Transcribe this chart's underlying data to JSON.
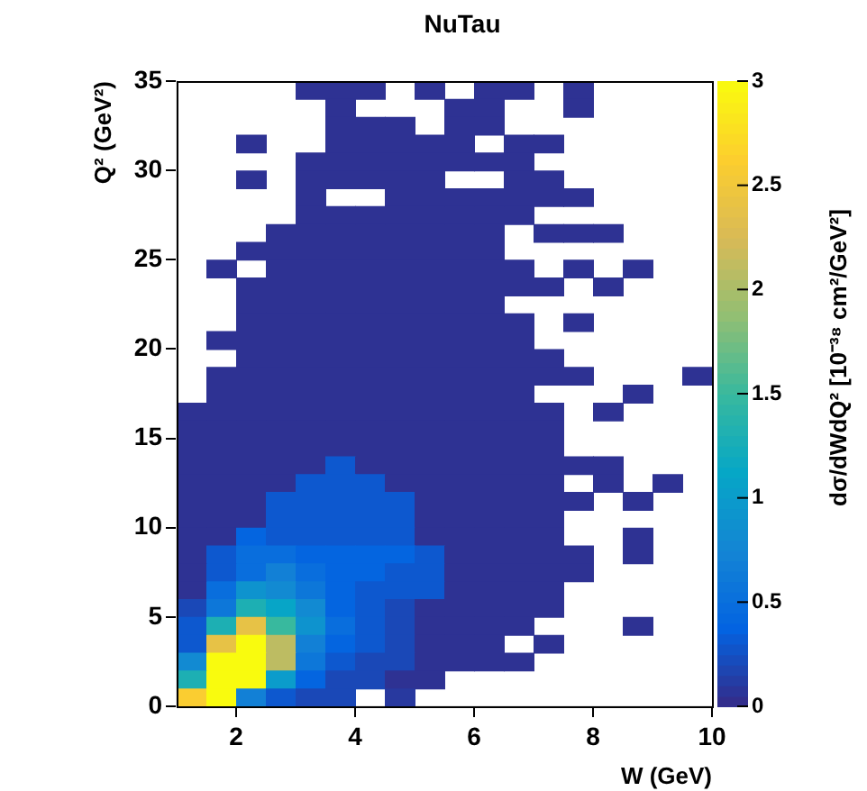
{
  "chart_data": {
    "type": "heatmap",
    "title": "NuTau",
    "xlabel": "W (GeV)",
    "ylabel": "Q² (GeV²)",
    "clabel": "dσ/dWdQ² [10⁻³⁸ cm²/GeV²]",
    "xlim": [
      1,
      10
    ],
    "xticks": [
      2,
      4,
      6,
      8,
      10
    ],
    "ylim": [
      0,
      35
    ],
    "yticks": [
      0,
      5,
      10,
      15,
      20,
      25,
      30,
      35
    ],
    "clim": [
      0,
      3
    ],
    "cticks": [
      0,
      0.5,
      1,
      1.5,
      2,
      2.5,
      3
    ],
    "grid": false,
    "cells": [
      [
        null,
        null,
        null,
        null,
        0.05,
        0.05,
        0.05,
        null,
        0.05,
        null,
        0.05,
        0.05,
        null,
        0.05,
        null,
        null,
        null,
        null
      ],
      [
        null,
        null,
        null,
        null,
        null,
        0.05,
        null,
        null,
        null,
        0.05,
        0.05,
        null,
        null,
        0.05,
        null,
        null,
        null,
        null
      ],
      [
        null,
        null,
        null,
        null,
        null,
        0.05,
        0.05,
        0.05,
        null,
        0.05,
        0.05,
        null,
        null,
        null,
        null,
        null,
        null,
        null
      ],
      [
        null,
        null,
        0.05,
        null,
        null,
        0.05,
        0.05,
        0.05,
        0.05,
        0.05,
        null,
        0.05,
        0.05,
        null,
        null,
        null,
        null,
        null
      ],
      [
        null,
        null,
        null,
        null,
        0.05,
        0.05,
        0.05,
        0.05,
        0.05,
        0.05,
        0.05,
        0.05,
        null,
        null,
        null,
        null,
        null,
        null
      ],
      [
        null,
        null,
        0.05,
        null,
        0.05,
        0.05,
        0.05,
        0.05,
        0.05,
        null,
        null,
        0.05,
        0.05,
        null,
        null,
        null,
        null,
        null
      ],
      [
        null,
        null,
        null,
        null,
        0.05,
        null,
        null,
        0.05,
        0.05,
        0.05,
        0.05,
        0.05,
        0.05,
        0.05,
        null,
        null,
        null,
        null
      ],
      [
        null,
        null,
        null,
        null,
        0.05,
        0.05,
        0.05,
        0.05,
        0.05,
        0.05,
        0.05,
        0.05,
        null,
        null,
        null,
        null,
        null,
        null
      ],
      [
        null,
        null,
        null,
        0.05,
        0.05,
        0.05,
        0.05,
        0.05,
        0.05,
        0.05,
        0.05,
        null,
        0.05,
        0.05,
        0.05,
        null,
        null,
        null
      ],
      [
        null,
        null,
        0.05,
        0.05,
        0.05,
        0.05,
        0.05,
        0.05,
        0.05,
        0.05,
        0.05,
        null,
        null,
        null,
        null,
        null,
        null,
        null
      ],
      [
        null,
        0.05,
        null,
        0.05,
        0.05,
        0.05,
        0.05,
        0.05,
        0.05,
        0.05,
        0.05,
        0.05,
        null,
        0.05,
        null,
        0.05,
        null,
        null
      ],
      [
        null,
        null,
        0.05,
        0.05,
        0.05,
        0.05,
        0.05,
        0.05,
        0.05,
        0.05,
        0.05,
        0.05,
        0.05,
        null,
        0.05,
        null,
        null,
        null
      ],
      [
        null,
        null,
        0.05,
        0.05,
        0.05,
        0.05,
        0.05,
        0.05,
        0.05,
        0.05,
        0.05,
        null,
        null,
        null,
        null,
        null,
        null,
        null
      ],
      [
        null,
        null,
        0.05,
        0.05,
        0.05,
        0.05,
        0.05,
        0.05,
        0.05,
        0.05,
        0.05,
        0.05,
        null,
        0.05,
        null,
        null,
        null,
        null
      ],
      [
        null,
        0.05,
        0.05,
        0.05,
        0.05,
        0.05,
        0.05,
        0.05,
        0.05,
        0.05,
        0.05,
        0.05,
        null,
        null,
        null,
        null,
        null,
        null
      ],
      [
        null,
        null,
        0.05,
        0.05,
        0.05,
        0.05,
        0.05,
        0.05,
        0.05,
        0.05,
        0.05,
        0.05,
        0.05,
        null,
        null,
        null,
        null,
        null
      ],
      [
        null,
        0.05,
        0.05,
        0.05,
        0.05,
        0.05,
        0.05,
        0.05,
        0.05,
        0.05,
        0.05,
        0.05,
        0.05,
        0.05,
        null,
        null,
        null,
        0.05
      ],
      [
        null,
        0.05,
        0.05,
        0.05,
        0.05,
        0.05,
        0.05,
        0.05,
        0.05,
        0.05,
        0.05,
        0.05,
        null,
        null,
        null,
        0.05,
        null,
        null
      ],
      [
        0.05,
        0.05,
        0.05,
        0.05,
        0.05,
        0.05,
        0.05,
        0.05,
        0.05,
        0.05,
        0.05,
        0.05,
        0.05,
        null,
        0.05,
        null,
        null,
        null
      ],
      [
        0.05,
        0.05,
        0.05,
        0.05,
        0.05,
        0.05,
        0.05,
        0.05,
        0.05,
        0.05,
        0.05,
        0.05,
        0.05,
        null,
        null,
        null,
        null,
        null
      ],
      [
        0.05,
        0.05,
        0.05,
        0.05,
        0.05,
        0.05,
        0.05,
        0.05,
        0.05,
        0.05,
        0.05,
        0.05,
        0.05,
        null,
        null,
        null,
        null,
        null
      ],
      [
        0.05,
        0.05,
        0.05,
        0.05,
        0.05,
        0.3,
        0.05,
        0.05,
        0.05,
        0.05,
        0.05,
        0.05,
        0.05,
        0.05,
        0.05,
        null,
        null,
        null
      ],
      [
        0.05,
        0.05,
        0.05,
        0.05,
        0.3,
        0.3,
        0.3,
        0.05,
        0.05,
        0.05,
        0.05,
        0.05,
        0.05,
        null,
        0.05,
        null,
        0.05,
        null
      ],
      [
        0.05,
        0.05,
        0.05,
        0.3,
        0.3,
        0.3,
        0.3,
        0.3,
        0.05,
        0.05,
        0.05,
        0.05,
        0.05,
        0.05,
        null,
        0.05,
        null,
        null
      ],
      [
        0.05,
        0.05,
        0.05,
        0.3,
        0.3,
        0.3,
        0.3,
        0.3,
        0.05,
        0.05,
        0.05,
        0.05,
        0.05,
        null,
        null,
        null,
        null,
        null
      ],
      [
        0.05,
        0.05,
        0.4,
        0.3,
        0.3,
        0.3,
        0.3,
        0.3,
        0.05,
        0.05,
        0.05,
        0.05,
        0.05,
        null,
        null,
        0.05,
        null,
        null
      ],
      [
        0.05,
        0.3,
        0.5,
        0.5,
        0.4,
        0.4,
        0.4,
        0.4,
        0.3,
        0.05,
        0.05,
        0.05,
        0.05,
        0.05,
        null,
        0.05,
        null,
        null
      ],
      [
        0.05,
        0.3,
        0.5,
        0.7,
        0.5,
        0.4,
        0.4,
        0.3,
        0.3,
        0.05,
        0.05,
        0.05,
        0.05,
        0.05,
        null,
        null,
        null,
        null
      ],
      [
        0.05,
        0.5,
        0.9,
        0.8,
        0.6,
        0.4,
        0.3,
        0.3,
        0.3,
        0.05,
        0.05,
        0.05,
        0.05,
        null,
        null,
        null,
        null,
        null
      ],
      [
        0.2,
        0.6,
        1.3,
        1.1,
        0.8,
        0.4,
        0.3,
        0.2,
        0.05,
        0.05,
        0.05,
        0.05,
        0.05,
        null,
        null,
        null,
        null,
        null
      ],
      [
        0.3,
        1.3,
        2.4,
        1.5,
        0.9,
        0.5,
        0.3,
        0.2,
        0.05,
        0.05,
        0.05,
        0.05,
        null,
        null,
        null,
        0.05,
        null,
        null
      ],
      [
        0.3,
        2.4,
        3,
        2.1,
        0.7,
        0.4,
        0.3,
        0.2,
        0.05,
        0.05,
        0.05,
        null,
        0.05,
        null,
        null,
        null,
        null,
        null
      ],
      [
        0.8,
        3,
        3,
        2.1,
        0.6,
        0.3,
        0.2,
        0.2,
        0.05,
        0.05,
        0.05,
        0.05,
        null,
        null,
        null,
        null,
        null,
        null
      ],
      [
        1.3,
        3,
        3,
        1,
        0.4,
        0.2,
        0.2,
        0.05,
        0.05,
        null,
        null,
        null,
        null,
        null,
        null,
        null,
        null,
        null
      ],
      [
        2.6,
        3,
        0.7,
        0.3,
        0.2,
        0.2,
        null,
        0.1,
        null,
        null,
        null,
        null,
        null,
        null,
        null,
        null,
        null,
        null
      ]
    ]
  }
}
